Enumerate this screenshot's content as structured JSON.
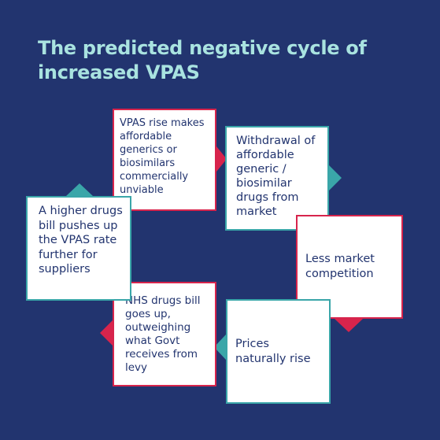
{
  "title": "The predicted negative cycle of increased VPAS",
  "colors": {
    "background": "#22346f",
    "title": "#a9e3e0",
    "red": "#d7244c",
    "teal": "#3aa6a9",
    "box_text": "#22346f"
  },
  "steps": [
    {
      "text": "VPAS rise makes affordable generics or biosimilars commercially unviable",
      "color": "red"
    },
    {
      "text": "Withdrawal of affordable generic / biosimilar drugs from market",
      "color": "teal"
    },
    {
      "text": "Less market competition",
      "color": "red"
    },
    {
      "text": "Prices naturally rise",
      "color": "teal"
    },
    {
      "text": "NHS drugs bill goes up, outweighing what Govt receives from levy",
      "color": "red"
    },
    {
      "text": "A higher drugs bill pushes up the VPAS rate further for suppliers",
      "color": "teal"
    }
  ]
}
